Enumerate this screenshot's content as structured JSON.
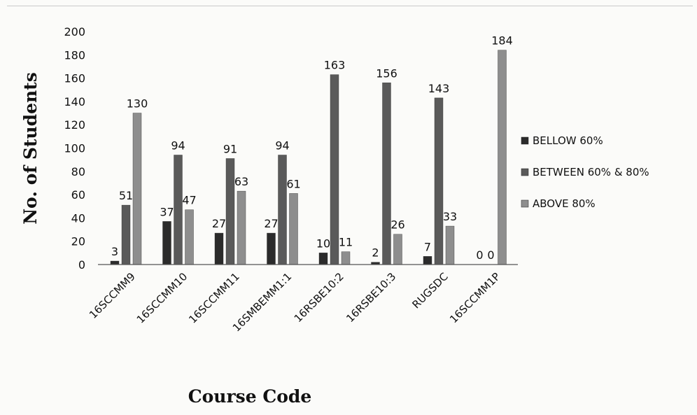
{
  "chart_data": {
    "type": "bar",
    "categories": [
      "16SCCMM9",
      "16SCCMM10",
      "16SCCMM11",
      "16SMBEMM1:1",
      "16RSBE10:2",
      "16RSBE10:3",
      "RUGSDC",
      "16SCCMM1P"
    ],
    "series": [
      {
        "name": "BELLOW 60%",
        "color": "#2b2b2b",
        "values": [
          3,
          37,
          27,
          27,
          10,
          2,
          7,
          0
        ]
      },
      {
        "name": "BETWEEN 60% & 80%",
        "color": "#5a5a5a",
        "values": [
          51,
          94,
          91,
          94,
          163,
          156,
          143,
          0
        ]
      },
      {
        "name": "ABOVE 80%",
        "color": "#8e8e8e",
        "values": [
          130,
          47,
          63,
          61,
          11,
          26,
          33,
          184
        ]
      }
    ],
    "data_labels": [
      [
        "3",
        "51",
        "130"
      ],
      [
        "37",
        "94",
        "47"
      ],
      [
        "27",
        "91",
        "63"
      ],
      [
        "27",
        "94",
        "61"
      ],
      [
        "10",
        "163",
        "11"
      ],
      [
        "2",
        "156",
        "26"
      ],
      [
        "7",
        "143",
        "33"
      ],
      [
        "0",
        "0",
        "184"
      ]
    ],
    "xlabel": "Course Code",
    "ylabel": "No. of Students",
    "ylim": [
      0,
      200
    ],
    "yticks": [
      "0",
      "20",
      "40",
      "60",
      "80",
      "100",
      "120",
      "140",
      "160",
      "180",
      "200"
    ],
    "grid": false,
    "legend": "right"
  }
}
